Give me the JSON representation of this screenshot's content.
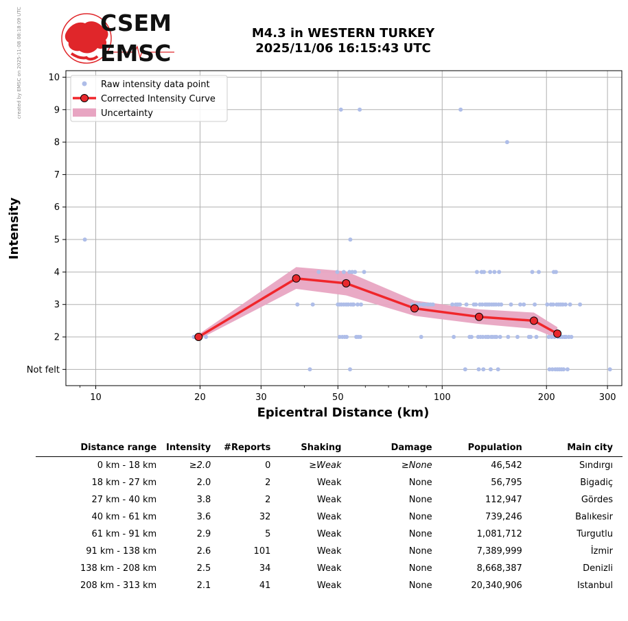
{
  "side_note": "created by EMSC on 2025-11-08 08:18:09 UTC",
  "logo": {
    "line1": "CSEM",
    "line2": "EMSC"
  },
  "title": {
    "line1": "M4.3 in WESTERN TURKEY",
    "line2": "2025/11/06 16:15:43 UTC"
  },
  "chart_data": {
    "type": "scatter",
    "xlabel": "Epicentral Distance (km)",
    "ylabel": "Intensity",
    "x_scale": "log",
    "xlim": [
      8.2,
      330
    ],
    "ylim": [
      0.5,
      10.2
    ],
    "x_ticks": [
      10,
      20,
      30,
      50,
      100,
      200,
      300
    ],
    "y_ticks": [
      1,
      2,
      3,
      4,
      5,
      6,
      7,
      8,
      9,
      10
    ],
    "y_tick_labels": [
      "Not felt",
      "2",
      "3",
      "4",
      "5",
      "6",
      "7",
      "8",
      "9",
      "10"
    ],
    "grid": true,
    "legend_position": "top-left",
    "legend": [
      "Raw intensity data point",
      "Corrected Intensity Curve",
      "Uncertainty"
    ],
    "colors": {
      "raw": "#aebde8",
      "curve": "#f0262b",
      "marker": "#e8282d",
      "uncertainty": "#e8a5c2",
      "grid": "#b0b0b0"
    },
    "raw_points": [
      [
        9.3,
        5
      ],
      [
        19.2,
        2
      ],
      [
        20.8,
        2
      ],
      [
        38.2,
        3
      ],
      [
        41.5,
        1
      ],
      [
        42.3,
        3
      ],
      [
        44,
        4
      ],
      [
        49.8,
        4
      ],
      [
        50,
        3
      ],
      [
        50.5,
        3
      ],
      [
        50.6,
        2
      ],
      [
        51,
        9
      ],
      [
        51.2,
        3
      ],
      [
        51.5,
        2
      ],
      [
        52,
        4
      ],
      [
        52,
        3
      ],
      [
        52.3,
        2
      ],
      [
        52.8,
        3
      ],
      [
        53,
        2
      ],
      [
        53.5,
        3
      ],
      [
        54,
        4
      ],
      [
        54.2,
        1
      ],
      [
        54.3,
        5
      ],
      [
        54.5,
        3
      ],
      [
        55,
        4
      ],
      [
        55.2,
        3
      ],
      [
        55.5,
        3
      ],
      [
        56,
        4
      ],
      [
        56.5,
        2
      ],
      [
        57,
        3
      ],
      [
        57.2,
        2
      ],
      [
        57.8,
        9
      ],
      [
        58,
        2
      ],
      [
        58.3,
        3
      ],
      [
        59.5,
        4
      ],
      [
        82,
        3
      ],
      [
        84.5,
        3
      ],
      [
        86,
        3
      ],
      [
        87,
        2
      ],
      [
        88,
        3
      ],
      [
        89,
        3
      ],
      [
        91,
        3
      ],
      [
        92.5,
        3
      ],
      [
        94,
        3
      ],
      [
        107,
        3
      ],
      [
        108,
        2
      ],
      [
        109.5,
        3
      ],
      [
        111,
        3
      ],
      [
        112.5,
        3
      ],
      [
        113,
        9
      ],
      [
        116.5,
        1
      ],
      [
        117.5,
        3
      ],
      [
        120,
        2
      ],
      [
        121.5,
        2
      ],
      [
        123.5,
        3
      ],
      [
        125,
        3
      ],
      [
        126,
        4
      ],
      [
        127,
        2
      ],
      [
        127.5,
        1
      ],
      [
        128.5,
        3
      ],
      [
        129,
        2
      ],
      [
        130,
        4
      ],
      [
        130.5,
        3
      ],
      [
        131,
        2
      ],
      [
        131.5,
        1
      ],
      [
        132,
        4
      ],
      [
        133,
        3
      ],
      [
        133.5,
        2
      ],
      [
        134,
        3
      ],
      [
        135,
        2
      ],
      [
        135.5,
        3
      ],
      [
        136,
        2
      ],
      [
        137,
        3
      ],
      [
        137.5,
        4
      ],
      [
        138,
        1
      ],
      [
        138.5,
        2
      ],
      [
        139,
        3
      ],
      [
        140,
        2
      ],
      [
        141,
        3
      ],
      [
        141.5,
        4
      ],
      [
        142,
        2
      ],
      [
        143,
        3
      ],
      [
        143.5,
        2
      ],
      [
        145,
        1
      ],
      [
        145.5,
        3
      ],
      [
        146,
        4
      ],
      [
        147,
        2
      ],
      [
        148,
        3
      ],
      [
        154,
        8
      ],
      [
        155,
        2
      ],
      [
        158,
        3
      ],
      [
        165,
        2
      ],
      [
        168,
        3
      ],
      [
        172,
        3
      ],
      [
        178,
        2
      ],
      [
        180,
        2
      ],
      [
        182,
        4
      ],
      [
        185,
        3
      ],
      [
        187,
        2
      ],
      [
        190,
        4
      ],
      [
        201,
        3
      ],
      [
        203,
        2
      ],
      [
        204,
        1
      ],
      [
        206,
        3
      ],
      [
        207,
        2
      ],
      [
        208,
        1
      ],
      [
        209,
        3
      ],
      [
        210,
        4
      ],
      [
        211,
        2
      ],
      [
        212,
        1
      ],
      [
        213,
        4
      ],
      [
        214,
        3
      ],
      [
        215,
        1
      ],
      [
        216,
        2
      ],
      [
        217,
        3
      ],
      [
        218,
        1
      ],
      [
        219,
        2
      ],
      [
        220,
        3
      ],
      [
        221,
        1
      ],
      [
        222,
        2
      ],
      [
        223,
        3
      ],
      [
        224,
        1
      ],
      [
        225,
        2
      ],
      [
        226,
        2
      ],
      [
        227,
        3
      ],
      [
        228,
        2
      ],
      [
        230,
        1
      ],
      [
        232,
        2
      ],
      [
        234,
        3
      ],
      [
        236,
        2
      ],
      [
        250,
        3
      ],
      [
        305,
        1
      ]
    ],
    "curve": {
      "x": [
        19.8,
        37.9,
        52.8,
        83.2,
        127.8,
        184,
        215
      ],
      "y": [
        2.0,
        3.8,
        3.65,
        2.88,
        2.62,
        2.5,
        2.1
      ]
    },
    "uncertainty": {
      "upper": [
        2.08,
        4.15,
        4.02,
        3.12,
        2.85,
        2.75,
        2.3
      ],
      "lower": [
        1.92,
        3.48,
        3.28,
        2.65,
        2.4,
        2.25,
        1.95
      ]
    }
  },
  "table": {
    "headers": [
      "Distance range",
      "Intensity",
      "#Reports",
      "Shaking",
      "Damage",
      "Population",
      "Main city"
    ],
    "rows": [
      {
        "range": "0 km -   18 km",
        "intensity": "≥2.0",
        "reports": "0",
        "shaking": "≥Weak",
        "damage": "≥None",
        "population": "46,542",
        "city": "Sındırgı",
        "italic": true
      },
      {
        "range": "18 km -   27 km",
        "intensity": "2.0",
        "reports": "2",
        "shaking": "Weak",
        "damage": "None",
        "population": "56,795",
        "city": "Bigadiç"
      },
      {
        "range": "27 km -   40 km",
        "intensity": "3.8",
        "reports": "2",
        "shaking": "Weak",
        "damage": "None",
        "population": "112,947",
        "city": "Gördes"
      },
      {
        "range": "40 km -   61 km",
        "intensity": "3.6",
        "reports": "32",
        "shaking": "Weak",
        "damage": "None",
        "population": "739,246",
        "city": "Balıkesir"
      },
      {
        "range": "61 km -   91 km",
        "intensity": "2.9",
        "reports": "5",
        "shaking": "Weak",
        "damage": "None",
        "population": "1,081,712",
        "city": "Turgutlu"
      },
      {
        "range": "91 km -  138 km",
        "intensity": "2.6",
        "reports": "101",
        "shaking": "Weak",
        "damage": "None",
        "population": "7,389,999",
        "city": "İzmir"
      },
      {
        "range": "138 km -  208 km",
        "intensity": "2.5",
        "reports": "34",
        "shaking": "Weak",
        "damage": "None",
        "population": "8,668,387",
        "city": "Denizli"
      },
      {
        "range": "208 km -  313 km",
        "intensity": "2.1",
        "reports": "41",
        "shaking": "Weak",
        "damage": "None",
        "population": "20,340,906",
        "city": "Istanbul"
      }
    ]
  }
}
